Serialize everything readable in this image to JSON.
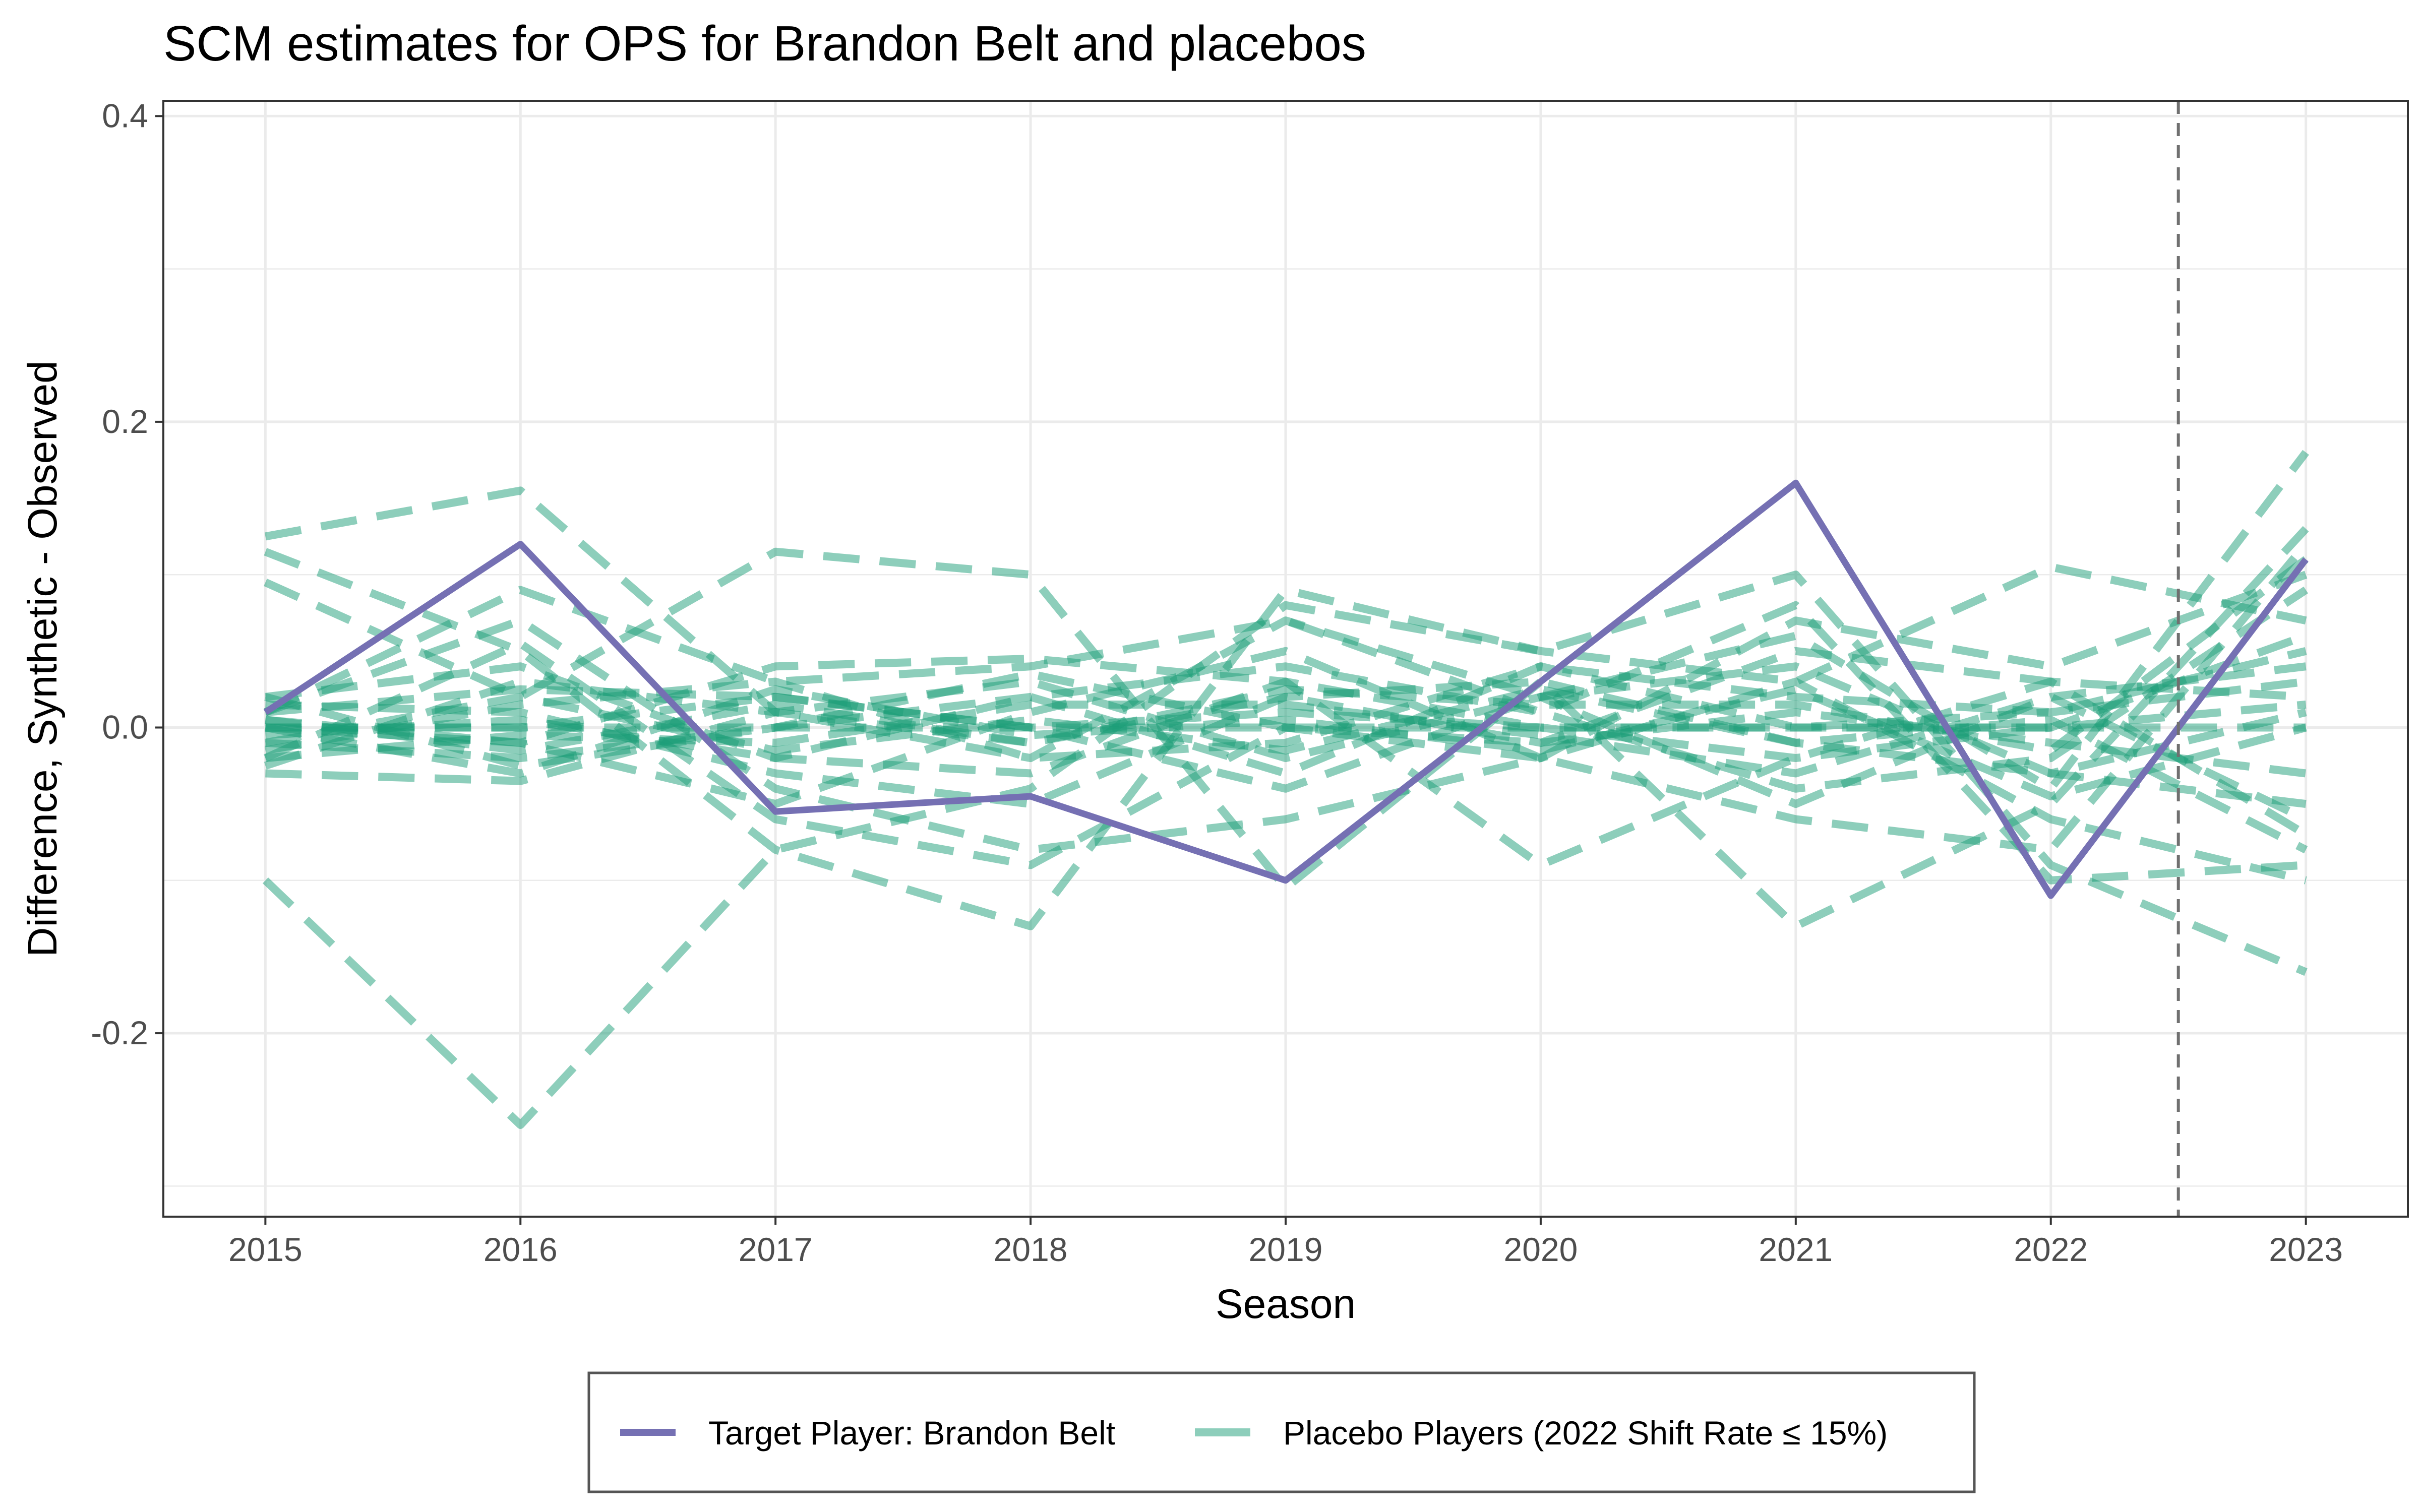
{
  "chart_data": {
    "type": "line",
    "title": "SCM estimates for OPS for Brandon Belt and placebos",
    "xlabel": "Season",
    "ylabel": "Difference, Synthetic - Observed",
    "x": [
      2015,
      2016,
      2017,
      2018,
      2019,
      2020,
      2021,
      2022,
      2023
    ],
    "x_ticks": [
      "2015",
      "2016",
      "2017",
      "2018",
      "2019",
      "2020",
      "2021",
      "2022",
      "2023"
    ],
    "y_ticks": [
      "0.4",
      "0.2",
      "0.0",
      "-0.2"
    ],
    "y_tick_values": [
      0.4,
      0.2,
      0.0,
      -0.2
    ],
    "xlim": [
      2014.6,
      2023.4
    ],
    "ylim": [
      -0.32,
      0.41
    ],
    "treatment_line_x": 2022.5,
    "grid": true,
    "legend_position": "bottom",
    "target": {
      "name": "Target Player: Brandon Belt",
      "color": "#7570b3",
      "values": [
        0.01,
        0.12,
        -0.055,
        -0.045,
        -0.1,
        0.03,
        0.16,
        -0.11,
        0.11
      ]
    },
    "placebo_legend": "Placebo Players (2022 Shift Rate ≤ 15%)",
    "placebo_color": "#1b9e77",
    "placebos": [
      [
        0.125,
        0.155,
        0.01,
        -0.02,
        0.07,
        0.02,
        0.06,
        -0.04,
        0.18
      ],
      [
        -0.1,
        -0.26,
        -0.08,
        -0.04,
        0.08,
        0.05,
        0.1,
        -0.09,
        -0.16
      ],
      [
        0.095,
        0.02,
        0.115,
        0.1,
        -0.105,
        0.03,
        -0.13,
        -0.05,
        0.13
      ],
      [
        0.115,
        0.05,
        -0.08,
        -0.13,
        0.09,
        0.05,
        0.03,
        0.105,
        0.07
      ],
      [
        0.01,
        0.09,
        0.03,
        0.04,
        0.07,
        0.01,
        0.08,
        -0.1,
        -0.09
      ],
      [
        -0.02,
        0.055,
        -0.06,
        -0.09,
        0.0,
        -0.02,
        -0.06,
        -0.08,
        0.12
      ],
      [
        0.0,
        -0.01,
        0.04,
        0.045,
        0.03,
        -0.09,
        -0.02,
        0.03,
        0.02
      ],
      [
        0.01,
        0.07,
        -0.04,
        -0.08,
        -0.06,
        -0.02,
        0.07,
        0.04,
        0.1
      ],
      [
        -0.03,
        -0.035,
        0.01,
        -0.01,
        0.02,
        0.03,
        -0.01,
        -0.03,
        -0.05
      ],
      [
        0.02,
        0.04,
        -0.02,
        0.02,
        -0.03,
        0.04,
        0.02,
        0.01,
        0.05
      ],
      [
        0.0,
        0.0,
        0.02,
        0.0,
        0.01,
        0.0,
        0.0,
        0.0,
        0.0
      ],
      [
        -0.01,
        -0.02,
        0.0,
        0.02,
        0.04,
        0.01,
        -0.04,
        -0.02,
        0.09
      ],
      [
        0.015,
        0.01,
        -0.03,
        -0.05,
        0.02,
        -0.01,
        0.05,
        0.03,
        -0.07
      ],
      [
        -0.025,
        0.03,
        0.01,
        0.03,
        -0.02,
        0.02,
        -0.05,
        0.02,
        0.04
      ],
      [
        0.005,
        -0.01,
        -0.05,
        0.01,
        0.05,
        -0.02,
        0.03,
        -0.06,
        -0.1
      ],
      [
        -0.015,
        0.015,
        0.03,
        -0.02,
        -0.01,
        0.04,
        0.0,
        0.01,
        0.03
      ],
      [
        0.02,
        -0.025,
        0.0,
        0.035,
        0.0,
        -0.01,
        0.01,
        -0.01,
        -0.03
      ],
      [
        -0.005,
        0.005,
        -0.02,
        -0.03,
        0.03,
        0.0,
        -0.02,
        0.0,
        0.06
      ],
      [
        0.01,
        0.025,
        0.02,
        0.0,
        -0.04,
        0.02,
        0.04,
        -0.03,
        0.01
      ],
      [
        -0.02,
        -0.005,
        -0.01,
        0.015,
        0.015,
        -0.005,
        -0.03,
        0.02,
        -0.06
      ],
      [
        0.0,
        0.0,
        0.0,
        0.0,
        0.0,
        0.0,
        0.0,
        0.0,
        0.015
      ],
      [
        0.005,
        -0.015,
        0.015,
        -0.01,
        0.025,
        0.015,
        0.015,
        -0.015,
        0.11
      ],
      [
        -0.01,
        0.02,
        -0.015,
        0.005,
        -0.015,
        0.025,
        -0.01,
        0.005,
        -0.08
      ],
      [
        0.0,
        -0.03,
        0.025,
        -0.005,
        0.005,
        -0.015,
        0.025,
        -0.045,
        0.0
      ]
    ]
  }
}
